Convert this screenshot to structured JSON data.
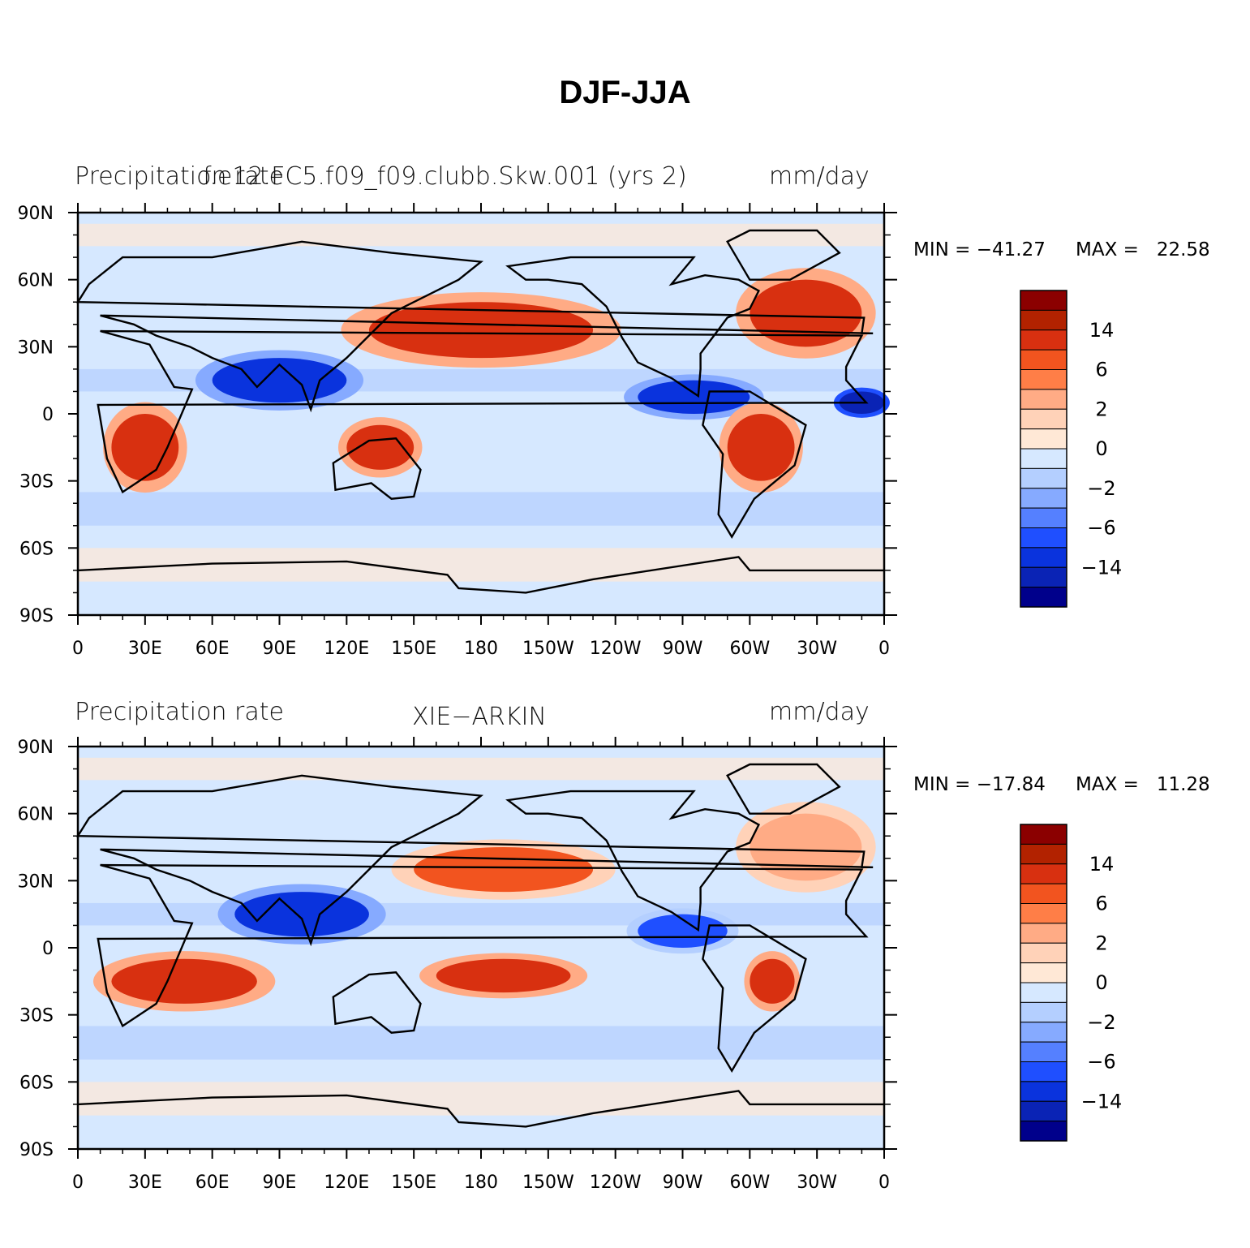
{
  "title": "DJF-JJA",
  "panels": [
    {
      "left_title": "Precipitation rate",
      "center_title": "f.e12.FC5.f09_f09.clubb.Skw.001 (yrs 2)",
      "right_title": "mm/day",
      "min_label": "MIN = −41.27",
      "max_label": "MAX =   22.58"
    },
    {
      "left_title": "Precipitation rate",
      "center_title": "XIE−ARKIN",
      "right_title": "mm/day",
      "min_label": "MIN = −17.84",
      "max_label": "MAX =   11.28"
    }
  ],
  "colorbar": {
    "colors": [
      "#8b0000",
      "#b22200",
      "#d83010",
      "#f2541f",
      "#ff7e47",
      "#ffab85",
      "#ffd2b8",
      "#ffe8d6",
      "#d6e8ff",
      "#b4cfff",
      "#86aaff",
      "#5580ff",
      "#1f4fff",
      "#0a33dd",
      "#0a23b5",
      "#00008b"
    ],
    "labels": [
      "14",
      "6",
      "2",
      "0",
      "−2",
      "−6",
      "−14"
    ]
  },
  "chart_data": [
    {
      "type": "heatmap",
      "title": "DJF-JJA",
      "subtitle": "f.e12.FC5.f09_f09.clubb.Skw.001 (yrs 2)",
      "variable": "Precipitation rate",
      "units": "mm/day",
      "min": -41.27,
      "max": 22.58,
      "x_ticks": [
        "0",
        "30E",
        "60E",
        "90E",
        "120E",
        "150E",
        "180",
        "150W",
        "120W",
        "90W",
        "60W",
        "30W",
        "0"
      ],
      "y_ticks": [
        "90N",
        "60N",
        "30N",
        "0",
        "30S",
        "60S",
        "90S"
      ],
      "xlim": [
        0,
        360
      ],
      "ylim": [
        -90,
        90
      ],
      "contour_levels": [
        -14,
        -10,
        -6,
        -4,
        -2,
        -1,
        0,
        1,
        2,
        4,
        6,
        10,
        14
      ],
      "regions": [
        {
          "lon": [
            340,
            360
          ],
          "lat": [
            0,
            10
          ],
          "value": -14
        },
        {
          "lon": [
            250,
            300
          ],
          "lat": [
            0,
            15
          ],
          "value": -10
        },
        {
          "lon": [
            60,
            120
          ],
          "lat": [
            5,
            25
          ],
          "value": -10
        },
        {
          "lon": [
            130,
            230
          ],
          "lat": [
            25,
            50
          ],
          "value": 6
        },
        {
          "lon": [
            300,
            350
          ],
          "lat": [
            30,
            60
          ],
          "value": 6
        },
        {
          "lon": [
            15,
            45
          ],
          "lat": [
            -30,
            0
          ],
          "value": 6
        },
        {
          "lon": [
            120,
            150
          ],
          "lat": [
            -25,
            -5
          ],
          "value": 6
        },
        {
          "lon": [
            290,
            320
          ],
          "lat": [
            -30,
            0
          ],
          "value": 6
        }
      ]
    },
    {
      "type": "heatmap",
      "title": "DJF-JJA",
      "subtitle": "XIE−ARKIN",
      "variable": "Precipitation rate",
      "units": "mm/day",
      "min": -17.84,
      "max": 11.28,
      "x_ticks": [
        "0",
        "30E",
        "60E",
        "90E",
        "120E",
        "150E",
        "180",
        "150W",
        "120W",
        "90W",
        "60W",
        "30W",
        "0"
      ],
      "y_ticks": [
        "90N",
        "60N",
        "30N",
        "0",
        "30S",
        "60S",
        "90S"
      ],
      "xlim": [
        0,
        360
      ],
      "ylim": [
        -90,
        90
      ],
      "contour_levels": [
        -14,
        -10,
        -6,
        -4,
        -2,
        -1,
        0,
        1,
        2,
        4,
        6,
        10,
        14
      ],
      "regions": [
        {
          "lon": [
            70,
            130
          ],
          "lat": [
            5,
            25
          ],
          "value": -10
        },
        {
          "lon": [
            250,
            290
          ],
          "lat": [
            0,
            15
          ],
          "value": -6
        },
        {
          "lon": [
            150,
            230
          ],
          "lat": [
            25,
            45
          ],
          "value": 4
        },
        {
          "lon": [
            300,
            350
          ],
          "lat": [
            30,
            60
          ],
          "value": 2
        },
        {
          "lon": [
            15,
            80
          ],
          "lat": [
            -25,
            -5
          ],
          "value": 6
        },
        {
          "lon": [
            160,
            220
          ],
          "lat": [
            -20,
            -5
          ],
          "value": 6
        },
        {
          "lon": [
            300,
            320
          ],
          "lat": [
            -25,
            -5
          ],
          "value": 6
        }
      ]
    }
  ]
}
